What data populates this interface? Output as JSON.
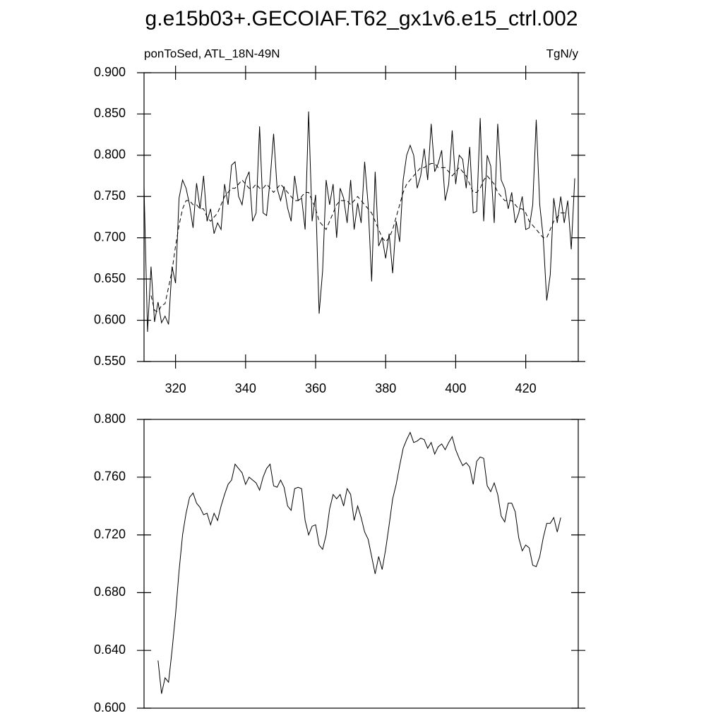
{
  "chart_data": [
    {
      "type": "line",
      "title": "g.e15b03+.GECOIAF.T62_gx1v6.e15_ctrl.002",
      "subtitle": "ponToSed, ATL_18N-49N",
      "units": "TgN/y",
      "x": [
        311,
        312,
        313,
        314,
        315,
        316,
        317,
        318,
        319,
        320,
        321,
        322,
        323,
        324,
        325,
        326,
        327,
        328,
        329,
        330,
        331,
        332,
        333,
        334,
        335,
        336,
        337,
        338,
        339,
        340,
        341,
        342,
        343,
        344,
        345,
        346,
        347,
        348,
        349,
        350,
        351,
        352,
        353,
        354,
        355,
        356,
        357,
        358,
        359,
        360,
        361,
        362,
        363,
        364,
        365,
        366,
        367,
        368,
        369,
        370,
        371,
        372,
        373,
        374,
        375,
        376,
        377,
        378,
        379,
        380,
        381,
        382,
        383,
        384,
        385,
        386,
        387,
        388,
        389,
        390,
        391,
        392,
        393,
        394,
        395,
        396,
        397,
        398,
        399,
        400,
        401,
        402,
        403,
        404,
        405,
        406,
        407,
        408,
        409,
        410,
        411,
        412,
        413,
        414,
        415,
        416,
        417,
        418,
        419,
        420,
        421,
        422,
        423,
        424,
        425,
        426,
        427,
        428,
        429,
        430,
        431,
        432,
        433,
        434
      ],
      "series": [
        {
          "color": "#000000",
          "dashed": false,
          "values": [
            0.762,
            0.586,
            0.665,
            0.598,
            0.622,
            0.597,
            0.605,
            0.595,
            0.665,
            0.645,
            0.748,
            0.77,
            0.76,
            0.74,
            0.712,
            0.766,
            0.735,
            0.775,
            0.72,
            0.735,
            0.705,
            0.718,
            0.71,
            0.765,
            0.74,
            0.788,
            0.792,
            0.75,
            0.74,
            0.77,
            0.78,
            0.72,
            0.73,
            0.835,
            0.73,
            0.727,
            0.77,
            0.826,
            0.76,
            0.745,
            0.762,
            0.736,
            0.72,
            0.775,
            0.745,
            0.748,
            0.71,
            0.853,
            0.72,
            0.752,
            0.608,
            0.66,
            0.77,
            0.74,
            0.765,
            0.7,
            0.76,
            0.748,
            0.718,
            0.77,
            0.71,
            0.742,
            0.718,
            0.792,
            0.74,
            0.647,
            0.78,
            0.69,
            0.7,
            0.675,
            0.705,
            0.657,
            0.72,
            0.695,
            0.77,
            0.8,
            0.812,
            0.8,
            0.76,
            0.775,
            0.808,
            0.77,
            0.838,
            0.78,
            0.79,
            0.806,
            0.745,
            0.765,
            0.83,
            0.765,
            0.8,
            0.795,
            0.76,
            0.81,
            0.73,
            0.732,
            0.845,
            0.72,
            0.8,
            0.787,
            0.718,
            0.838,
            0.77,
            0.76,
            0.735,
            0.755,
            0.718,
            0.73,
            0.75,
            0.71,
            0.712,
            0.74,
            0.843,
            0.74,
            0.7,
            0.624,
            0.655,
            0.748,
            0.718,
            0.75,
            0.718,
            0.745,
            0.686,
            0.772
          ]
        },
        {
          "color": "#000000",
          "dashed": true,
          "values": [
            null,
            null,
            0.63,
            0.612,
            0.61,
            0.618,
            0.62,
            0.64,
            0.66,
            0.69,
            0.715,
            0.735,
            0.745,
            0.745,
            0.74,
            0.74,
            0.735,
            0.735,
            0.725,
            0.72,
            0.725,
            0.73,
            0.74,
            0.75,
            0.755,
            0.76,
            0.76,
            0.765,
            0.77,
            0.765,
            0.76,
            0.76,
            0.765,
            0.76,
            0.76,
            0.765,
            0.76,
            0.755,
            0.76,
            0.765,
            0.76,
            0.755,
            0.75,
            0.745,
            0.745,
            0.75,
            0.755,
            0.755,
            0.745,
            0.735,
            0.72,
            0.715,
            0.71,
            0.72,
            0.73,
            0.74,
            0.745,
            0.745,
            0.745,
            0.74,
            0.745,
            0.75,
            0.745,
            0.74,
            0.735,
            0.73,
            0.72,
            0.71,
            0.7,
            0.695,
            0.7,
            0.71,
            0.725,
            0.74,
            0.755,
            0.765,
            0.77,
            0.775,
            0.78,
            0.785,
            0.785,
            0.788,
            0.79,
            0.79,
            0.785,
            0.785,
            0.785,
            0.78,
            0.775,
            0.78,
            0.785,
            0.78,
            0.775,
            0.765,
            0.755,
            0.755,
            0.76,
            0.77,
            0.775,
            0.77,
            0.765,
            0.755,
            0.75,
            0.745,
            0.745,
            0.745,
            0.74,
            0.735,
            0.735,
            0.73,
            0.72,
            0.715,
            0.71,
            0.705,
            0.7,
            0.7,
            0.71,
            0.72,
            0.725,
            0.73,
            0.73,
            0.73,
            null,
            null
          ]
        }
      ],
      "xlim": [
        311,
        435
      ],
      "xticks": [
        320,
        340,
        360,
        380,
        400,
        420
      ],
      "ylim": [
        0.55,
        0.9
      ],
      "yticks": [
        {
          "value": 0.55,
          "label": "0.550"
        },
        {
          "value": 0.6,
          "label": "0.600"
        },
        {
          "value": 0.65,
          "label": "0.650"
        },
        {
          "value": 0.7,
          "label": "0.700"
        },
        {
          "value": 0.75,
          "label": "0.750"
        },
        {
          "value": 0.8,
          "label": "0.800"
        },
        {
          "value": 0.85,
          "label": "0.850"
        },
        {
          "value": 0.9,
          "label": "0.900"
        }
      ]
    },
    {
      "type": "line",
      "x": [
        311,
        312,
        313,
        314,
        315,
        316,
        317,
        318,
        319,
        320,
        321,
        322,
        323,
        324,
        325,
        326,
        327,
        328,
        329,
        330,
        331,
        332,
        333,
        334,
        335,
        336,
        337,
        338,
        339,
        340,
        341,
        342,
        343,
        344,
        345,
        346,
        347,
        348,
        349,
        350,
        351,
        352,
        353,
        354,
        355,
        356,
        357,
        358,
        359,
        360,
        361,
        362,
        363,
        364,
        365,
        366,
        367,
        368,
        369,
        370,
        371,
        372,
        373,
        374,
        375,
        376,
        377,
        378,
        379,
        380,
        381,
        382,
        383,
        384,
        385,
        386,
        387,
        388,
        389,
        390,
        391,
        392,
        393,
        394,
        395,
        396,
        397,
        398,
        399,
        400,
        401,
        402,
        403,
        404,
        405,
        406,
        407,
        408,
        409,
        410,
        411,
        412,
        413,
        414,
        415,
        416,
        417,
        418,
        419,
        420,
        421,
        422,
        423,
        424,
        425,
        426,
        427,
        428,
        429,
        430,
        431,
        432,
        433,
        434
      ],
      "series": [
        {
          "color": "#000000",
          "dashed": false,
          "values": [
            null,
            null,
            null,
            null,
            0.633,
            0.61,
            0.621,
            0.618,
            0.64,
            0.665,
            0.695,
            0.72,
            0.735,
            0.746,
            0.749,
            0.742,
            0.739,
            0.734,
            0.735,
            0.727,
            0.735,
            0.73,
            0.74,
            0.748,
            0.755,
            0.758,
            0.769,
            0.766,
            0.763,
            0.755,
            0.76,
            0.758,
            0.756,
            0.751,
            0.76,
            0.766,
            0.769,
            0.754,
            0.753,
            0.758,
            0.753,
            0.74,
            0.737,
            0.752,
            0.753,
            0.752,
            0.73,
            0.72,
            0.726,
            0.727,
            0.713,
            0.71,
            0.72,
            0.738,
            0.748,
            0.745,
            0.748,
            0.74,
            0.752,
            0.748,
            0.73,
            0.74,
            0.732,
            0.722,
            0.717,
            0.705,
            0.693,
            0.705,
            0.696,
            0.71,
            0.727,
            0.745,
            0.755,
            0.768,
            0.78,
            0.786,
            0.791,
            0.784,
            0.785,
            0.787,
            0.786,
            0.78,
            0.784,
            0.776,
            0.781,
            0.783,
            0.779,
            0.784,
            0.788,
            0.779,
            0.773,
            0.768,
            0.77,
            0.767,
            0.755,
            0.771,
            0.774,
            0.773,
            0.754,
            0.75,
            0.756,
            0.748,
            0.733,
            0.729,
            0.742,
            0.742,
            0.736,
            0.718,
            0.709,
            0.713,
            0.711,
            0.699,
            0.698,
            0.705,
            0.718,
            0.728,
            0.728,
            0.732,
            0.722,
            0.732,
            null,
            null,
            null,
            null
          ]
        }
      ],
      "xlim": [
        311,
        435
      ],
      "ylim": [
        0.6,
        0.8
      ],
      "yticks": [
        {
          "value": 0.6,
          "label": "0.600"
        },
        {
          "value": 0.64,
          "label": "0.640"
        },
        {
          "value": 0.68,
          "label": "0.680"
        },
        {
          "value": 0.72,
          "label": "0.720"
        },
        {
          "value": 0.76,
          "label": "0.760"
        },
        {
          "value": 0.8,
          "label": "0.800"
        }
      ]
    }
  ]
}
